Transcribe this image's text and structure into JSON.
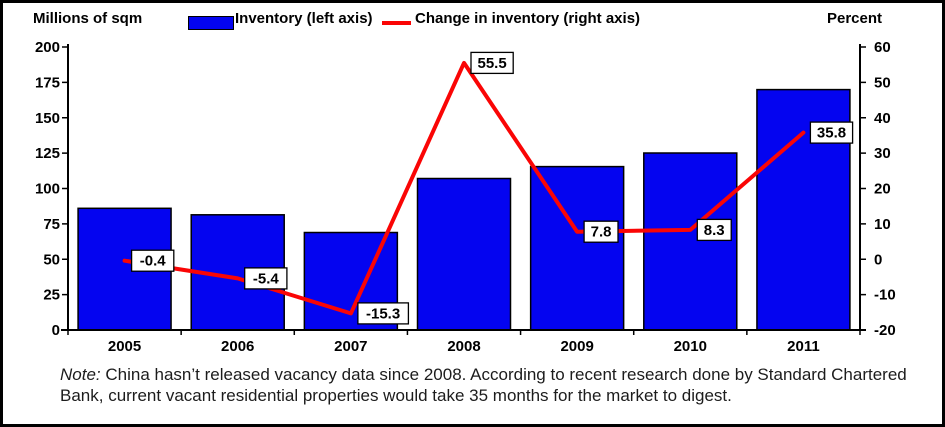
{
  "chart": {
    "left_axis_title": "Millions of sqm",
    "right_axis_title": "Percent",
    "legend": [
      {
        "label": "Inventory (left axis)",
        "type": "bar",
        "color": "#0404f0"
      },
      {
        "label": "Change in inventory (right axis)",
        "type": "line",
        "color": "#fa0505"
      }
    ]
  },
  "chart_data": {
    "type": "bar",
    "categories": [
      "2005",
      "2006",
      "2007",
      "2008",
      "2009",
      "2010",
      "2011"
    ],
    "series": [
      {
        "name": "Inventory (left axis)",
        "type": "bar",
        "axis": "left",
        "color": "#0404f0",
        "values": [
          86,
          81.4,
          68.9,
          107.1,
          115.5,
          125.1,
          169.9
        ]
      },
      {
        "name": "Change in inventory (right axis)",
        "type": "line",
        "axis": "right",
        "color": "#fa0505",
        "values": [
          -0.4,
          -5.4,
          -15.3,
          55.5,
          7.8,
          8.3,
          35.8
        ],
        "data_labels": [
          "-0.4",
          "-5.4",
          "-15.3",
          "55.5",
          "7.8",
          "8.3",
          "35.8"
        ]
      }
    ],
    "left_axis": {
      "label": "Millions of sqm",
      "min": 0,
      "max": 200,
      "ticks": [
        0,
        25,
        50,
        75,
        100,
        125,
        150,
        175,
        200
      ]
    },
    "right_axis": {
      "label": "Percent",
      "min": -20,
      "max": 60,
      "ticks": [
        -20,
        -10,
        0,
        10,
        20,
        30,
        40,
        50,
        60
      ]
    },
    "grid": false,
    "legend_position": "top"
  },
  "note": {
    "prefix": "Note:",
    "text": " China hasn’t released vacancy data since 2008. According to recent research done by Standard Chartered Bank, current vacant residential properties would take 35 months for the market to digest."
  }
}
